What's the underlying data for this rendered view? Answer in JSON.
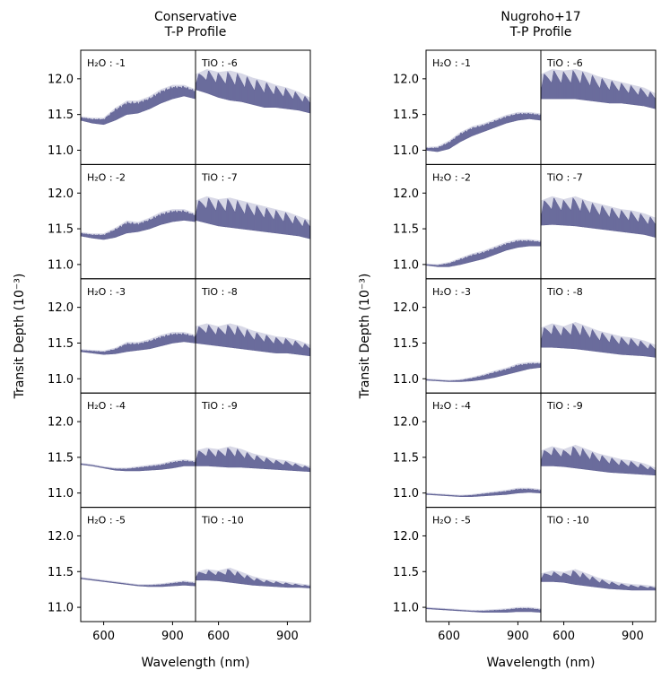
{
  "chart_data": [
    {
      "type": "area",
      "title": "Conservative\nT-P Profile",
      "xlabel": "Wavelength (nm)",
      "ylabel": "Transit Depth (10⁻³)",
      "xlim": [
        500,
        1000
      ],
      "ylim": [
        10.8,
        12.4
      ],
      "xticks": [
        600,
        900
      ],
      "yticks": [
        11.0,
        11.5,
        12.0
      ],
      "series_color": "#5b5c8f",
      "panels": [
        {
          "label": "H₂O : -1",
          "col": 0,
          "row": 0,
          "kind": "h2o",
          "x": [
            500,
            550,
            600,
            650,
            700,
            750,
            800,
            850,
            900,
            950,
            1000
          ],
          "low": [
            11.42,
            11.38,
            11.36,
            11.42,
            11.5,
            11.52,
            11.58,
            11.66,
            11.72,
            11.76,
            11.72
          ],
          "high": [
            11.46,
            11.44,
            11.44,
            11.58,
            11.68,
            11.68,
            11.74,
            11.84,
            11.9,
            11.9,
            11.84
          ]
        },
        {
          "label": "TiO : -6",
          "col": 1,
          "row": 0,
          "kind": "tio",
          "x": [
            500,
            550,
            600,
            650,
            700,
            750,
            800,
            850,
            900,
            950,
            1000
          ],
          "low": [
            11.85,
            11.8,
            11.74,
            11.7,
            11.68,
            11.64,
            11.6,
            11.6,
            11.58,
            11.56,
            11.52
          ],
          "high": [
            12.05,
            12.12,
            12.08,
            12.1,
            12.06,
            12.0,
            11.96,
            11.9,
            11.86,
            11.8,
            11.72
          ]
        },
        {
          "label": "H₂O : -2",
          "col": 0,
          "row": 1,
          "kind": "h2o",
          "x": [
            500,
            550,
            600,
            650,
            700,
            750,
            800,
            850,
            900,
            950,
            1000
          ],
          "low": [
            11.4,
            11.37,
            11.35,
            11.38,
            11.44,
            11.46,
            11.5,
            11.56,
            11.6,
            11.62,
            11.6
          ],
          "high": [
            11.44,
            11.42,
            11.42,
            11.5,
            11.6,
            11.58,
            11.64,
            11.72,
            11.76,
            11.76,
            11.7
          ]
        },
        {
          "label": "TiO : -7",
          "col": 1,
          "row": 1,
          "kind": "tio",
          "x": [
            500,
            550,
            600,
            650,
            700,
            750,
            800,
            850,
            900,
            950,
            1000
          ],
          "low": [
            11.62,
            11.58,
            11.54,
            11.52,
            11.5,
            11.48,
            11.46,
            11.44,
            11.42,
            11.4,
            11.36
          ],
          "high": [
            11.88,
            11.94,
            11.9,
            11.92,
            11.88,
            11.84,
            11.8,
            11.76,
            11.72,
            11.66,
            11.6
          ]
        },
        {
          "label": "H₂O : -3",
          "col": 0,
          "row": 2,
          "kind": "h2o",
          "x": [
            500,
            550,
            600,
            650,
            700,
            750,
            800,
            850,
            900,
            950,
            1000
          ],
          "low": [
            11.38,
            11.36,
            11.34,
            11.35,
            11.38,
            11.4,
            11.42,
            11.46,
            11.5,
            11.52,
            11.5
          ],
          "high": [
            11.4,
            11.39,
            11.38,
            11.42,
            11.5,
            11.5,
            11.54,
            11.6,
            11.64,
            11.64,
            11.6
          ]
        },
        {
          "label": "TiO : -8",
          "col": 1,
          "row": 2,
          "kind": "tio",
          "x": [
            500,
            550,
            600,
            650,
            700,
            750,
            800,
            850,
            900,
            950,
            1000
          ],
          "low": [
            11.5,
            11.48,
            11.46,
            11.44,
            11.42,
            11.4,
            11.38,
            11.36,
            11.36,
            11.34,
            11.32
          ],
          "high": [
            11.72,
            11.76,
            11.72,
            11.76,
            11.72,
            11.66,
            11.62,
            11.58,
            11.56,
            11.52,
            11.46
          ]
        },
        {
          "label": "H₂O : -4",
          "col": 0,
          "row": 3,
          "kind": "h2o",
          "x": [
            500,
            550,
            600,
            650,
            700,
            750,
            800,
            850,
            900,
            950,
            1000
          ],
          "low": [
            11.4,
            11.38,
            11.35,
            11.32,
            11.31,
            11.31,
            11.32,
            11.33,
            11.35,
            11.38,
            11.38
          ],
          "high": [
            11.41,
            11.39,
            11.36,
            11.34,
            11.34,
            11.36,
            11.38,
            11.4,
            11.44,
            11.46,
            11.44
          ]
        },
        {
          "label": "TiO : -9",
          "col": 1,
          "row": 3,
          "kind": "tio",
          "x": [
            500,
            550,
            600,
            650,
            700,
            750,
            800,
            850,
            900,
            950,
            1000
          ],
          "low": [
            11.38,
            11.38,
            11.37,
            11.36,
            11.36,
            11.35,
            11.34,
            11.33,
            11.32,
            11.31,
            11.3
          ],
          "high": [
            11.58,
            11.62,
            11.6,
            11.64,
            11.6,
            11.54,
            11.5,
            11.46,
            11.44,
            11.4,
            11.36
          ]
        },
        {
          "label": "H₂O : -5",
          "col": 0,
          "row": 4,
          "kind": "h2o",
          "x": [
            500,
            550,
            600,
            650,
            700,
            750,
            800,
            850,
            900,
            950,
            1000
          ],
          "low": [
            11.4,
            11.38,
            11.36,
            11.34,
            11.32,
            11.3,
            11.29,
            11.29,
            11.3,
            11.31,
            11.3
          ],
          "high": [
            11.41,
            11.39,
            11.37,
            11.35,
            11.33,
            11.31,
            11.31,
            11.32,
            11.34,
            11.36,
            11.34
          ]
        },
        {
          "label": "TiO : -10",
          "col": 1,
          "row": 4,
          "kind": "tio",
          "x": [
            500,
            550,
            600,
            650,
            700,
            750,
            800,
            850,
            900,
            950,
            1000
          ],
          "low": [
            11.38,
            11.38,
            11.37,
            11.35,
            11.33,
            11.31,
            11.3,
            11.29,
            11.28,
            11.28,
            11.27
          ],
          "high": [
            11.48,
            11.52,
            11.5,
            11.54,
            11.48,
            11.42,
            11.38,
            11.36,
            11.34,
            11.32,
            11.3
          ]
        }
      ]
    },
    {
      "type": "area",
      "title": "Nugroho+17\nT-P Profile",
      "xlabel": "Wavelength (nm)",
      "ylabel": "Transit Depth (10⁻³)",
      "xlim": [
        500,
        1000
      ],
      "ylim": [
        10.8,
        12.4
      ],
      "xticks": [
        600,
        900
      ],
      "yticks": [
        11.0,
        11.5,
        12.0
      ],
      "series_color": "#5b5c8f",
      "panels": [
        {
          "label": "H₂O : -1",
          "col": 0,
          "row": 0,
          "kind": "h2o",
          "x": [
            500,
            550,
            600,
            650,
            700,
            750,
            800,
            850,
            900,
            950,
            1000
          ],
          "low": [
            11.0,
            10.98,
            11.02,
            11.12,
            11.2,
            11.26,
            11.32,
            11.38,
            11.42,
            11.44,
            11.42
          ],
          "high": [
            11.03,
            11.04,
            11.12,
            11.24,
            11.32,
            11.36,
            11.42,
            11.48,
            11.52,
            11.52,
            11.5
          ]
        },
        {
          "label": "TiO : -6",
          "col": 1,
          "row": 0,
          "kind": "tio",
          "x": [
            500,
            550,
            600,
            650,
            700,
            750,
            800,
            850,
            900,
            950,
            1000
          ],
          "low": [
            11.72,
            11.72,
            11.72,
            11.72,
            11.7,
            11.68,
            11.66,
            11.66,
            11.64,
            11.62,
            11.58
          ],
          "high": [
            12.05,
            12.12,
            12.1,
            12.12,
            12.08,
            12.02,
            11.98,
            11.94,
            11.9,
            11.86,
            11.78
          ]
        },
        {
          "label": "H₂O : -2",
          "col": 0,
          "row": 1,
          "kind": "h2o",
          "x": [
            500,
            550,
            600,
            650,
            700,
            750,
            800,
            850,
            900,
            950,
            1000
          ],
          "low": [
            10.99,
            10.97,
            10.97,
            11.0,
            11.04,
            11.08,
            11.14,
            11.2,
            11.24,
            11.26,
            11.26
          ],
          "high": [
            11.0,
            10.99,
            11.02,
            11.08,
            11.14,
            11.18,
            11.24,
            11.3,
            11.34,
            11.34,
            11.32
          ]
        },
        {
          "label": "TiO : -7",
          "col": 1,
          "row": 1,
          "kind": "tio",
          "x": [
            500,
            550,
            600,
            650,
            700,
            750,
            800,
            850,
            900,
            950,
            1000
          ],
          "low": [
            11.55,
            11.56,
            11.55,
            11.54,
            11.52,
            11.5,
            11.48,
            11.46,
            11.44,
            11.42,
            11.38
          ],
          "high": [
            11.88,
            11.94,
            11.9,
            11.94,
            11.88,
            11.84,
            11.8,
            11.76,
            11.74,
            11.7,
            11.64
          ]
        },
        {
          "label": "H₂O : -3",
          "col": 0,
          "row": 2,
          "kind": "h2o",
          "x": [
            500,
            550,
            600,
            650,
            700,
            750,
            800,
            850,
            900,
            950,
            1000
          ],
          "low": [
            10.98,
            10.97,
            10.96,
            10.96,
            10.97,
            10.99,
            11.02,
            11.06,
            11.1,
            11.14,
            11.16
          ],
          "high": [
            10.99,
            10.98,
            10.97,
            10.98,
            11.01,
            11.05,
            11.1,
            11.14,
            11.2,
            11.22,
            11.22
          ]
        },
        {
          "label": "TiO : -8",
          "col": 1,
          "row": 2,
          "kind": "tio",
          "x": [
            500,
            550,
            600,
            650,
            700,
            750,
            800,
            850,
            900,
            950,
            1000
          ],
          "low": [
            11.44,
            11.44,
            11.43,
            11.42,
            11.4,
            11.38,
            11.36,
            11.34,
            11.33,
            11.32,
            11.3
          ],
          "high": [
            11.7,
            11.76,
            11.72,
            11.78,
            11.72,
            11.66,
            11.62,
            11.58,
            11.56,
            11.52,
            11.46
          ]
        },
        {
          "label": "H₂O : -4",
          "col": 0,
          "row": 3,
          "kind": "h2o",
          "x": [
            500,
            550,
            600,
            650,
            700,
            750,
            800,
            850,
            900,
            950,
            1000
          ],
          "low": [
            10.98,
            10.97,
            10.96,
            10.95,
            10.95,
            10.96,
            10.97,
            10.98,
            11.0,
            11.01,
            11.0
          ],
          "high": [
            10.99,
            10.98,
            10.97,
            10.96,
            10.97,
            10.99,
            11.01,
            11.03,
            11.06,
            11.06,
            11.04
          ]
        },
        {
          "label": "TiO : -9",
          "col": 1,
          "row": 3,
          "kind": "tio",
          "x": [
            500,
            550,
            600,
            650,
            700,
            750,
            800,
            850,
            900,
            950,
            1000
          ],
          "low": [
            11.38,
            11.38,
            11.37,
            11.35,
            11.33,
            11.31,
            11.29,
            11.28,
            11.27,
            11.26,
            11.25
          ],
          "high": [
            11.58,
            11.64,
            11.6,
            11.66,
            11.6,
            11.54,
            11.5,
            11.46,
            11.44,
            11.4,
            11.34
          ]
        },
        {
          "label": "H₂O : -5",
          "col": 0,
          "row": 4,
          "kind": "h2o",
          "x": [
            500,
            550,
            600,
            650,
            700,
            750,
            800,
            850,
            900,
            950,
            1000
          ],
          "low": [
            10.98,
            10.97,
            10.96,
            10.95,
            10.94,
            10.93,
            10.93,
            10.93,
            10.94,
            10.94,
            10.93
          ],
          "high": [
            10.99,
            10.98,
            10.97,
            10.96,
            10.95,
            10.95,
            10.96,
            10.97,
            10.99,
            10.99,
            10.97
          ]
        },
        {
          "label": "TiO : -10",
          "col": 1,
          "row": 4,
          "kind": "tio",
          "x": [
            500,
            550,
            600,
            650,
            700,
            750,
            800,
            850,
            900,
            950,
            1000
          ],
          "low": [
            11.36,
            11.36,
            11.35,
            11.32,
            11.3,
            11.28,
            11.26,
            11.25,
            11.24,
            11.24,
            11.24
          ],
          "high": [
            11.46,
            11.5,
            11.48,
            11.52,
            11.46,
            11.4,
            11.36,
            11.33,
            11.31,
            11.3,
            11.28
          ]
        }
      ]
    }
  ]
}
